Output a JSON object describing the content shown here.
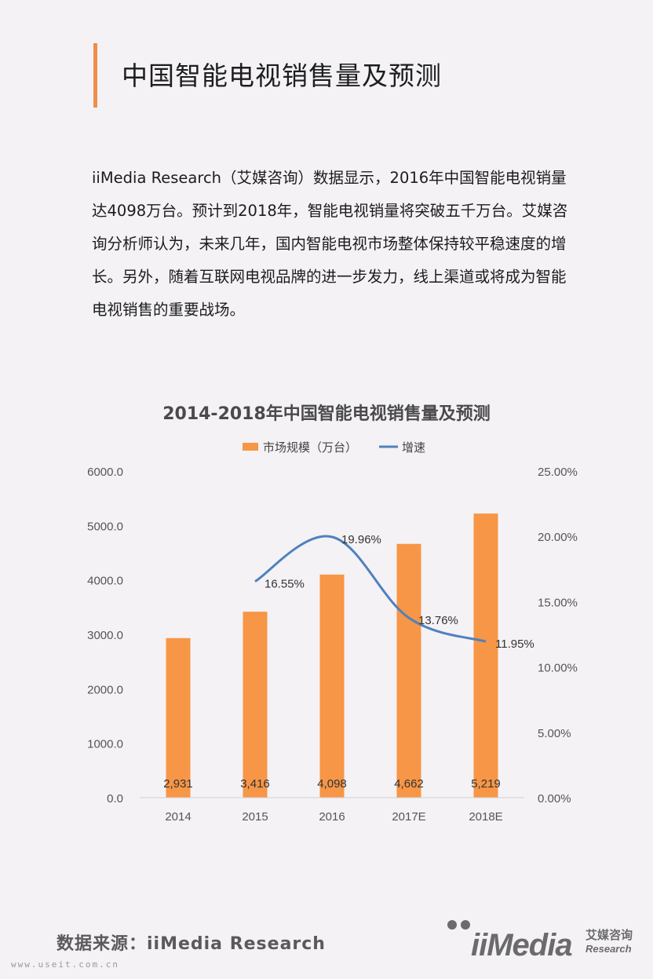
{
  "page": {
    "title": "中国智能电视销售量及预测",
    "intro": "iiMedia Research（艾媒咨询）数据显示，2016年中国智能电视销量达4098万台。预计到2018年，智能电视销量将突破五千万台。艾媒咨询分析师认为，未来几年，国内智能电视市场整体保持较平稳速度的增长。另外，随着互联网电视品牌的进一步发力，线上渠道或将成为智能电视销售的重要战场。",
    "source": "数据来源：iiMedia Research",
    "site": "www.useit.com.cn"
  },
  "logo": {
    "text": "iiMedia",
    "cn": "艾媒咨询",
    "en": "Research",
    "color": "#6b6b6b"
  },
  "chart_data": {
    "type": "bar",
    "title": "2014-2018年中国智能电视销售量及预测",
    "categories": [
      "2014",
      "2015",
      "2016",
      "2017E",
      "2018E"
    ],
    "series": [
      {
        "name": "市场规模（万台）",
        "type": "bar",
        "axis": "left",
        "color": "#f79646",
        "values": [
          2931,
          3416,
          4098,
          4662,
          5219
        ],
        "labels": [
          "2,931",
          "3,416",
          "4,098",
          "4,662",
          "5,219"
        ]
      },
      {
        "name": "增速",
        "type": "line",
        "axis": "right",
        "color": "#4f81bd",
        "values": [
          null,
          16.55,
          19.96,
          13.76,
          11.95
        ],
        "labels": [
          "",
          "16.55%",
          "19.96%",
          "13.76%",
          "11.95%"
        ]
      }
    ],
    "ylim": [
      0,
      6000
    ],
    "yticks": [
      "0.0",
      "1000.0",
      "2000.0",
      "3000.0",
      "4000.0",
      "5000.0",
      "6000.0"
    ],
    "y2lim": [
      0,
      25
    ],
    "y2ticks": [
      "0.00%",
      "5.00%",
      "10.00%",
      "15.00%",
      "20.00%",
      "25.00%"
    ],
    "legend_position": "top-center",
    "grid": false
  }
}
